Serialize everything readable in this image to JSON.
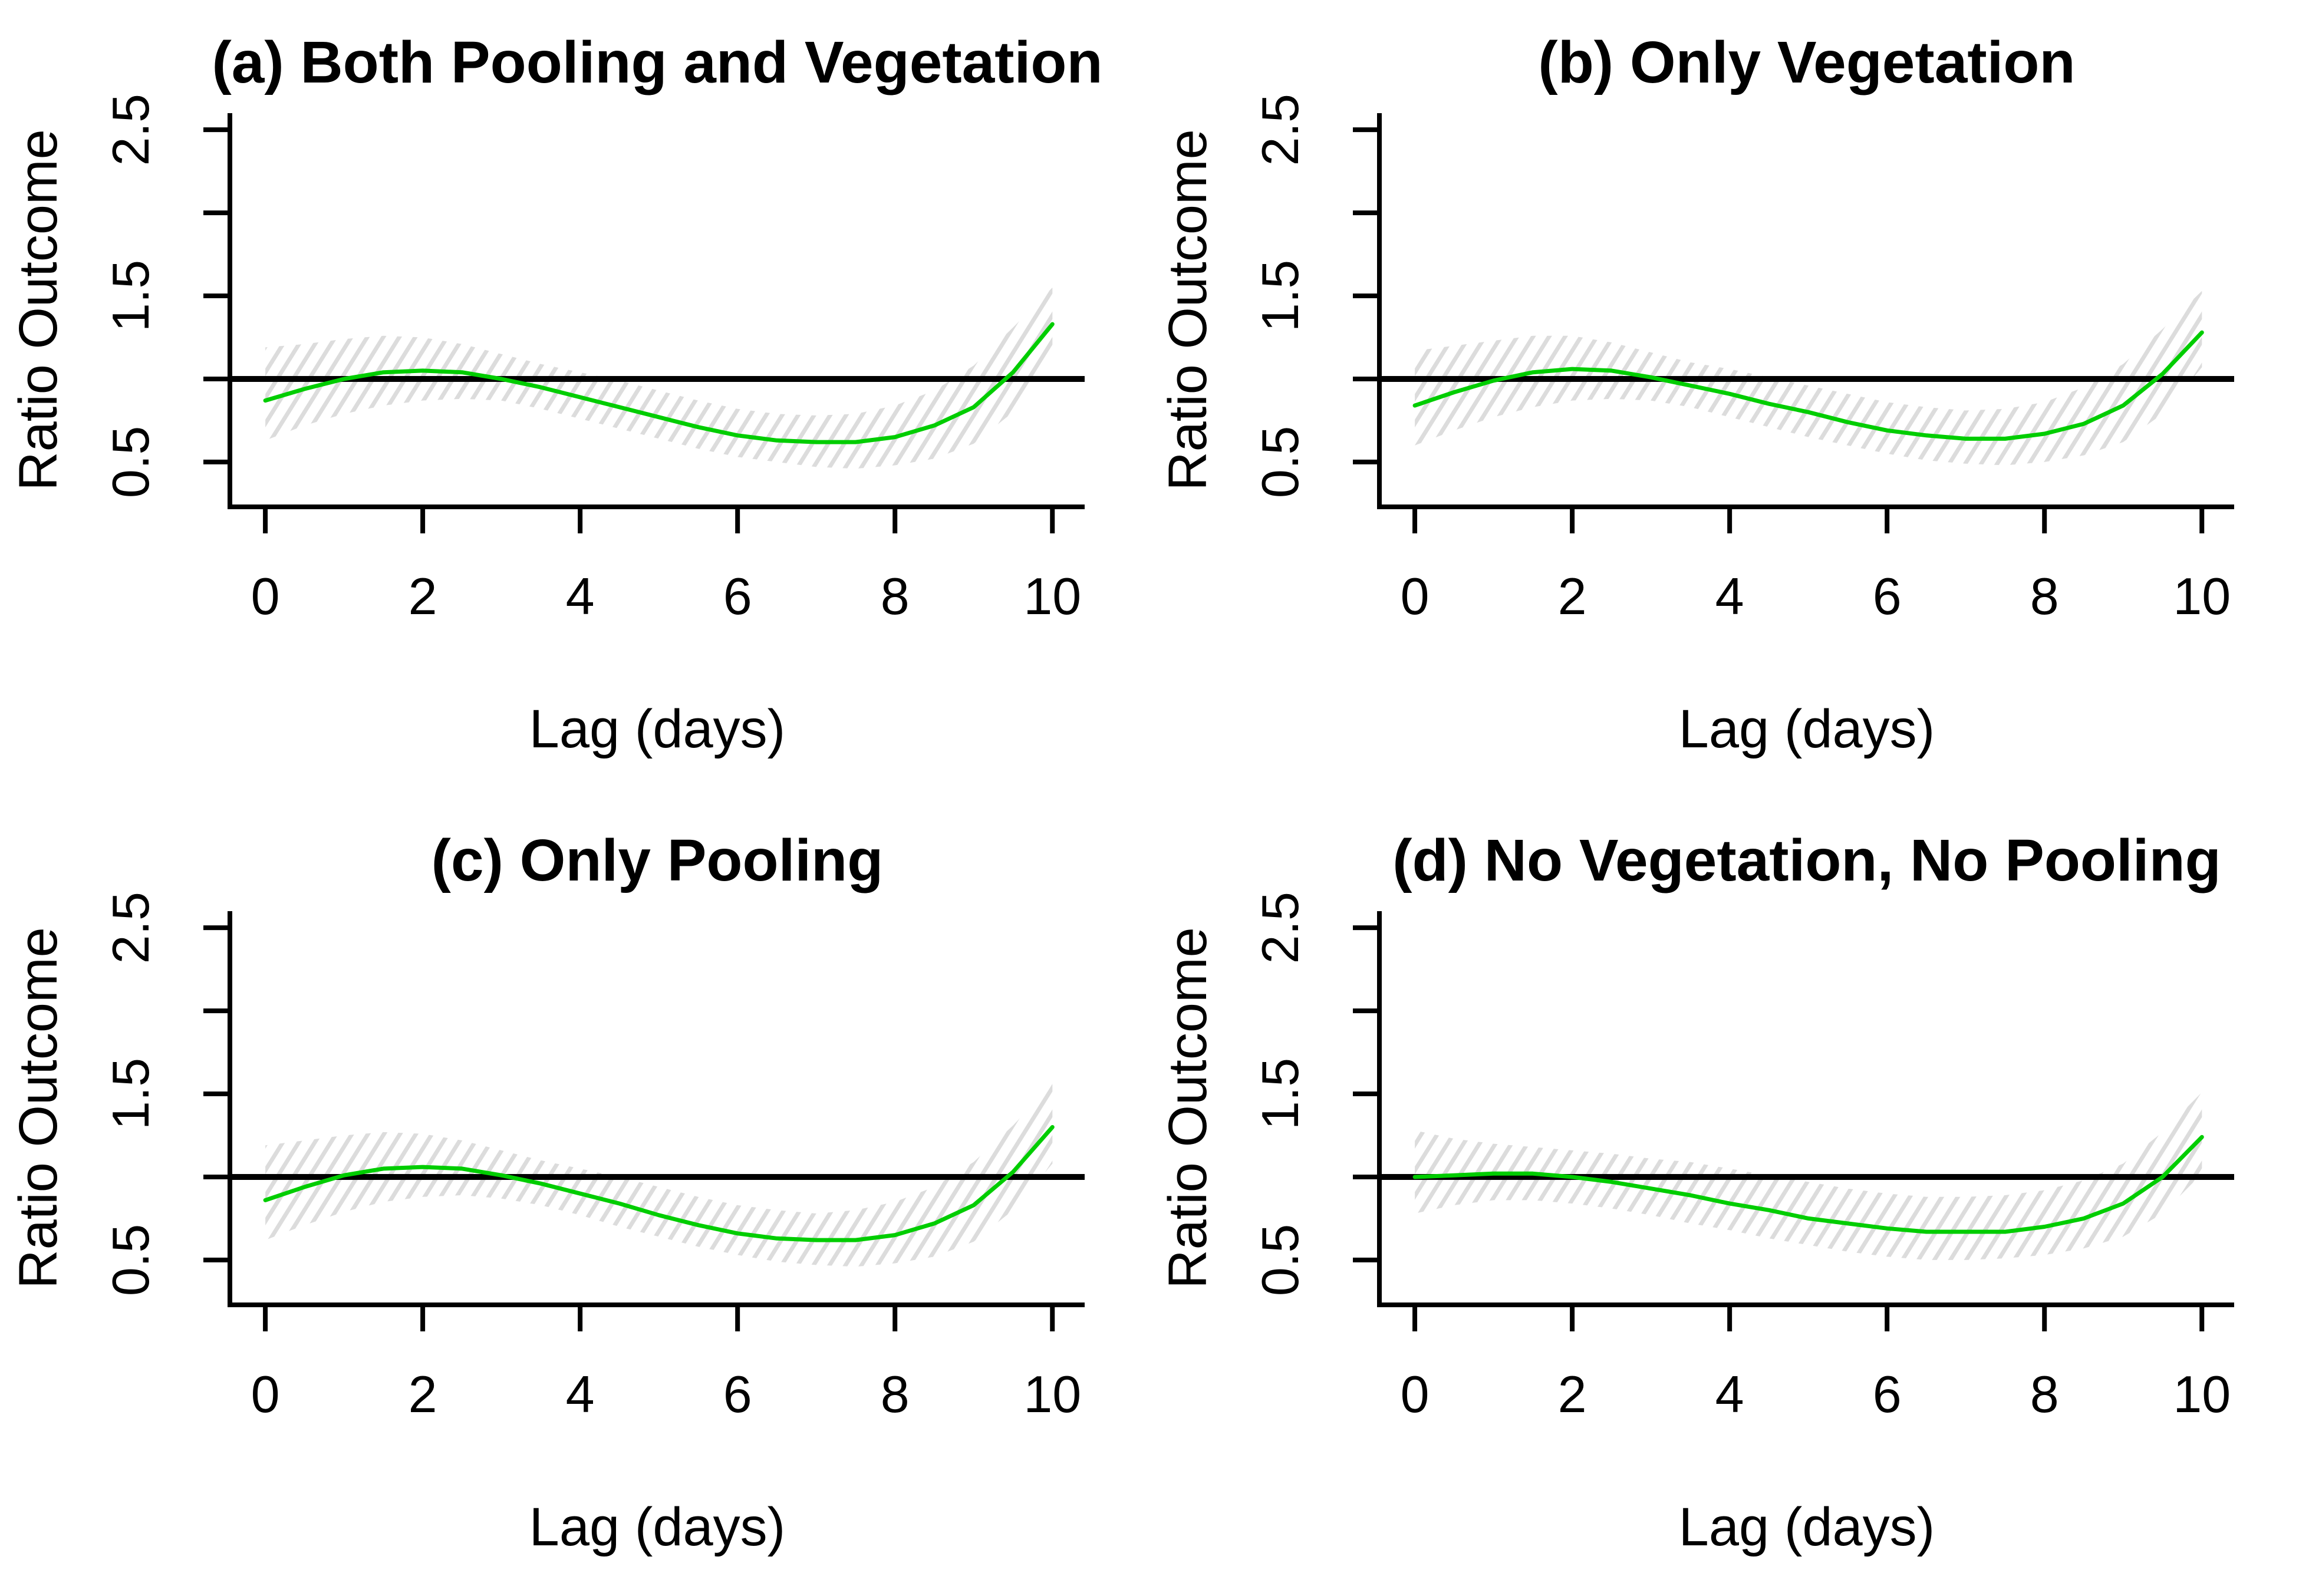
{
  "colors": {
    "curve_green": "#00CD00",
    "ci_band_gray": "#DCDCDC",
    "reference_black": "#000000",
    "axis_black": "#000000",
    "background": "#FFFFFF"
  },
  "chart_data": [
    {
      "type": "line",
      "panel": "a",
      "title": "(a) Both Pooling and Vegetation",
      "xlabel": "Lag (days)",
      "ylabel": "Ratio Outcome",
      "xlim": [
        -0.45,
        10.41
      ],
      "ylim": [
        0.23,
        2.6
      ],
      "xticks": [
        0,
        2,
        4,
        6,
        8,
        10
      ],
      "yticks": [
        0.5,
        1.0,
        1.5,
        2.0,
        2.5
      ],
      "ytick_labels": [
        "0.5",
        "",
        "1.5",
        "",
        "2.5"
      ],
      "grid": false,
      "legend": "none",
      "band_style": "diagonal-hatch",
      "reference_line_y": 1.0,
      "x": [
        0,
        0.5,
        1,
        1.5,
        2,
        2.5,
        3,
        3.5,
        4,
        4.5,
        5,
        5.5,
        6,
        6.5,
        7,
        7.5,
        8,
        8.5,
        9,
        9.5,
        10
      ],
      "series": [
        {
          "name": "estimate",
          "role": "line",
          "values": [
            0.87,
            0.94,
            1.0,
            1.04,
            1.05,
            1.04,
            1.0,
            0.95,
            0.89,
            0.83,
            0.77,
            0.71,
            0.66,
            0.63,
            0.62,
            0.62,
            0.65,
            0.72,
            0.83,
            1.04,
            1.33
          ]
        },
        {
          "name": "ci_lower",
          "role": "band-lower",
          "values": [
            0.63,
            0.72,
            0.79,
            0.84,
            0.87,
            0.88,
            0.87,
            0.82,
            0.76,
            0.7,
            0.64,
            0.58,
            0.53,
            0.5,
            0.47,
            0.46,
            0.48,
            0.52,
            0.61,
            0.8,
            1.1
          ]
        },
        {
          "name": "ci_upper",
          "role": "band-upper",
          "values": [
            1.19,
            1.21,
            1.24,
            1.26,
            1.25,
            1.21,
            1.15,
            1.09,
            1.04,
            0.99,
            0.93,
            0.87,
            0.82,
            0.79,
            0.78,
            0.79,
            0.84,
            0.93,
            1.08,
            1.31,
            1.55
          ]
        }
      ]
    },
    {
      "type": "line",
      "panel": "b",
      "title": "(b) Only Vegetation",
      "xlabel": "Lag (days)",
      "ylabel": "Ratio Outcome",
      "xlim": [
        -0.45,
        10.41
      ],
      "ylim": [
        0.23,
        2.6
      ],
      "xticks": [
        0,
        2,
        4,
        6,
        8,
        10
      ],
      "yticks": [
        0.5,
        1.0,
        1.5,
        2.0,
        2.5
      ],
      "ytick_labels": [
        "0.5",
        "",
        "1.5",
        "",
        "2.5"
      ],
      "grid": false,
      "legend": "none",
      "band_style": "diagonal-hatch",
      "reference_line_y": 1.0,
      "x": [
        0,
        0.5,
        1,
        1.5,
        2,
        2.5,
        3,
        3.5,
        4,
        4.5,
        5,
        5.5,
        6,
        6.5,
        7,
        7.5,
        8,
        8.5,
        9,
        9.5,
        10
      ],
      "series": [
        {
          "name": "estimate",
          "role": "line",
          "values": [
            0.84,
            0.92,
            0.99,
            1.04,
            1.06,
            1.05,
            1.01,
            0.96,
            0.91,
            0.85,
            0.8,
            0.74,
            0.69,
            0.66,
            0.64,
            0.64,
            0.67,
            0.73,
            0.84,
            1.03,
            1.28
          ]
        },
        {
          "name": "ci_lower",
          "role": "band-lower",
          "values": [
            0.6,
            0.69,
            0.77,
            0.83,
            0.87,
            0.88,
            0.87,
            0.83,
            0.77,
            0.71,
            0.65,
            0.6,
            0.55,
            0.51,
            0.49,
            0.48,
            0.5,
            0.54,
            0.62,
            0.79,
            1.07
          ]
        },
        {
          "name": "ci_upper",
          "role": "band-upper",
          "values": [
            1.17,
            1.2,
            1.23,
            1.26,
            1.26,
            1.22,
            1.16,
            1.1,
            1.06,
            1.01,
            0.96,
            0.91,
            0.86,
            0.83,
            0.81,
            0.82,
            0.86,
            0.95,
            1.09,
            1.3,
            1.53
          ]
        }
      ]
    },
    {
      "type": "line",
      "panel": "c",
      "title": "(c) Only Pooling",
      "xlabel": "Lag (days)",
      "ylabel": "Ratio Outcome",
      "xlim": [
        -0.45,
        10.41
      ],
      "ylim": [
        0.23,
        2.6
      ],
      "xticks": [
        0,
        2,
        4,
        6,
        8,
        10
      ],
      "yticks": [
        0.5,
        1.0,
        1.5,
        2.0,
        2.5
      ],
      "ytick_labels": [
        "0.5",
        "",
        "1.5",
        "",
        "2.5"
      ],
      "grid": false,
      "legend": "none",
      "band_style": "diagonal-hatch",
      "reference_line_y": 1.0,
      "x": [
        0,
        0.5,
        1,
        1.5,
        2,
        2.5,
        3,
        3.5,
        4,
        4.5,
        5,
        5.5,
        6,
        6.5,
        7,
        7.5,
        8,
        8.5,
        9,
        9.5,
        10
      ],
      "series": [
        {
          "name": "estimate",
          "role": "line",
          "values": [
            0.86,
            0.94,
            1.01,
            1.05,
            1.06,
            1.05,
            1.01,
            0.96,
            0.9,
            0.84,
            0.77,
            0.71,
            0.66,
            0.63,
            0.62,
            0.62,
            0.65,
            0.72,
            0.83,
            1.03,
            1.3
          ]
        },
        {
          "name": "ci_lower",
          "role": "band-lower",
          "values": [
            0.62,
            0.71,
            0.79,
            0.85,
            0.88,
            0.89,
            0.87,
            0.83,
            0.77,
            0.7,
            0.64,
            0.58,
            0.53,
            0.49,
            0.47,
            0.46,
            0.48,
            0.52,
            0.61,
            0.8,
            1.08
          ]
        },
        {
          "name": "ci_upper",
          "role": "band-upper",
          "values": [
            1.19,
            1.22,
            1.25,
            1.27,
            1.26,
            1.22,
            1.16,
            1.1,
            1.05,
            1.0,
            0.94,
            0.88,
            0.83,
            0.8,
            0.78,
            0.8,
            0.85,
            0.94,
            1.09,
            1.31,
            1.56
          ]
        }
      ]
    },
    {
      "type": "line",
      "panel": "d",
      "title": "(d) No Vegetation, No Pooling",
      "xlabel": "Lag (days)",
      "ylabel": "Ratio Outcome",
      "xlim": [
        -0.45,
        10.41
      ],
      "ylim": [
        0.23,
        2.6
      ],
      "xticks": [
        0,
        2,
        4,
        6,
        8,
        10
      ],
      "yticks": [
        0.5,
        1.0,
        1.5,
        2.0,
        2.5
      ],
      "ytick_labels": [
        "0.5",
        "",
        "1.5",
        "",
        "2.5"
      ],
      "grid": false,
      "legend": "none",
      "band_style": "diagonal-hatch",
      "reference_line_y": 1.0,
      "x": [
        0,
        0.5,
        1,
        1.5,
        2,
        2.5,
        3,
        3.5,
        4,
        4.5,
        5,
        5.5,
        6,
        6.5,
        7,
        7.5,
        8,
        8.5,
        9,
        9.5,
        10
      ],
      "series": [
        {
          "name": "estimate",
          "role": "line",
          "values": [
            1.0,
            1.01,
            1.02,
            1.02,
            1.0,
            0.97,
            0.93,
            0.89,
            0.84,
            0.8,
            0.75,
            0.72,
            0.69,
            0.67,
            0.67,
            0.67,
            0.7,
            0.75,
            0.84,
            1.0,
            1.24
          ]
        },
        {
          "name": "ci_lower",
          "role": "band-lower",
          "values": [
            0.78,
            0.83,
            0.86,
            0.86,
            0.84,
            0.81,
            0.77,
            0.72,
            0.68,
            0.63,
            0.59,
            0.55,
            0.52,
            0.5,
            0.5,
            0.51,
            0.53,
            0.57,
            0.64,
            0.78,
            1.02
          ]
        },
        {
          "name": "ci_upper",
          "role": "band-upper",
          "values": [
            1.28,
            1.23,
            1.2,
            1.18,
            1.16,
            1.14,
            1.11,
            1.09,
            1.05,
            1.01,
            0.97,
            0.93,
            0.9,
            0.88,
            0.88,
            0.89,
            0.92,
            0.98,
            1.08,
            1.27,
            1.51
          ]
        }
      ]
    }
  ]
}
